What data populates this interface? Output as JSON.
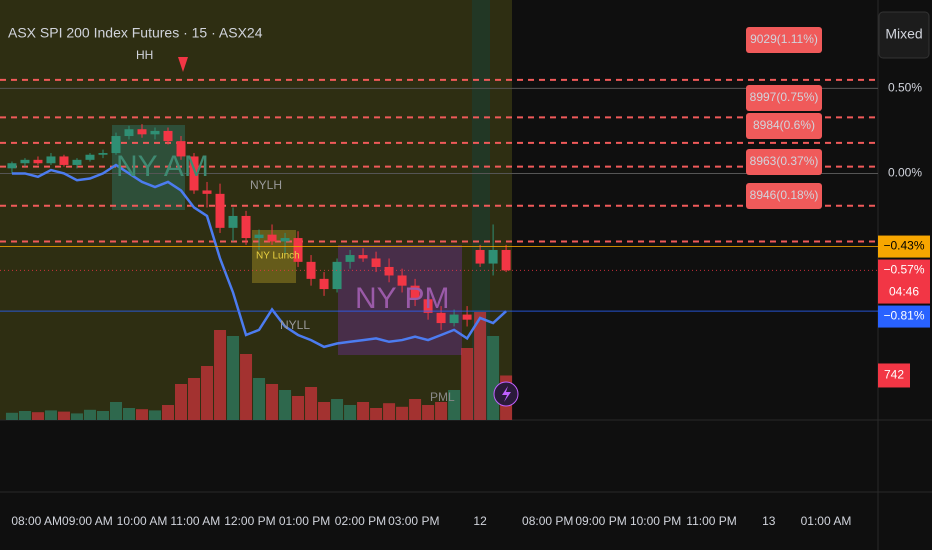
{
  "chart_data": {
    "type": "candlestick",
    "title": "ASX SPI 200 Index Futures · 15 · ASX24",
    "button": "Mixed",
    "ylim": [
      -1.45,
      1.02
    ],
    "xlim": [
      -0.92,
      66.6
    ],
    "yticks": [
      {
        "value": 0.5,
        "label": "0.50%"
      },
      {
        "value": 0,
        "label": "0.00%"
      }
    ],
    "xticks": [
      {
        "value": 1.9,
        "label": "08:00 AM"
      },
      {
        "value": 5.8,
        "label": "09:00 AM"
      },
      {
        "value": 10,
        "label": "10:00 AM"
      },
      {
        "value": 14.1,
        "label": "11:00 AM"
      },
      {
        "value": 18.3,
        "label": "12:00 PM"
      },
      {
        "value": 22.5,
        "label": "01:00 PM"
      },
      {
        "value": 26.8,
        "label": "02:00 PM"
      },
      {
        "value": 30.9,
        "label": "03:00 PM"
      },
      {
        "value": 36,
        "label": "12"
      },
      {
        "value": 41.2,
        "label": "08:00 PM"
      },
      {
        "value": 45.3,
        "label": "09:00 PM"
      },
      {
        "value": 49.5,
        "label": "10:00 PM"
      },
      {
        "value": 53.8,
        "label": "11:00 PM"
      },
      {
        "value": 58.2,
        "label": "13"
      },
      {
        "value": 62.6,
        "label": "01:00 AM"
      }
    ],
    "up_color": "#2f8f74",
    "down_color": "#f23645",
    "open": [
      0.03,
      0.06,
      0.08,
      0.06,
      0.1,
      0.05,
      0.08,
      0.11,
      0.12,
      0.22,
      0.26,
      0.23,
      0.25,
      0.19,
      0.1,
      -0.1,
      -0.12,
      -0.32,
      -0.25,
      -0.38,
      -0.36,
      -0.4,
      -0.38,
      -0.52,
      -0.62,
      -0.68,
      -0.52,
      -0.48,
      -0.5,
      -0.55,
      -0.6,
      -0.66,
      -0.74,
      -0.82,
      -0.88,
      -0.83,
      -0.45,
      -0.53,
      -0.45
    ],
    "high": [
      0.07,
      0.09,
      0.1,
      0.12,
      0.11,
      0.09,
      0.12,
      0.14,
      0.24,
      0.28,
      0.29,
      0.27,
      0.27,
      0.22,
      0.12,
      -0.05,
      -0.06,
      -0.2,
      -0.22,
      -0.33,
      -0.3,
      -0.35,
      -0.34,
      -0.48,
      -0.58,
      -0.5,
      -0.45,
      -0.44,
      -0.46,
      -0.5,
      -0.56,
      -0.62,
      -0.7,
      -0.78,
      -0.8,
      -0.78,
      -0.42,
      -0.3,
      -0.42
    ],
    "low": [
      0.0,
      0.04,
      0.05,
      0.05,
      0.04,
      0.03,
      0.07,
      0.09,
      0.11,
      0.2,
      0.21,
      0.2,
      0.17,
      0.08,
      -0.12,
      -0.2,
      -0.35,
      -0.4,
      -0.42,
      -0.45,
      -0.42,
      -0.48,
      -0.55,
      -0.66,
      -0.72,
      -0.7,
      -0.56,
      -0.52,
      -0.58,
      -0.64,
      -0.7,
      -0.78,
      -0.86,
      -0.92,
      -0.9,
      -0.9,
      -0.55,
      -0.6,
      -0.58
    ],
    "close": [
      0.06,
      0.08,
      0.06,
      0.1,
      0.05,
      0.08,
      0.11,
      0.12,
      0.22,
      0.26,
      0.23,
      0.25,
      0.19,
      0.1,
      -0.1,
      -0.12,
      -0.32,
      -0.25,
      -0.38,
      -0.36,
      -0.4,
      -0.38,
      -0.52,
      -0.62,
      -0.68,
      -0.52,
      -0.48,
      -0.5,
      -0.55,
      -0.6,
      -0.66,
      -0.74,
      -0.82,
      -0.88,
      -0.83,
      -0.86,
      -0.53,
      -0.45,
      -0.57
    ],
    "volume": [
      120,
      150,
      130,
      160,
      140,
      110,
      170,
      150,
      300,
      200,
      180,
      160,
      250,
      600,
      700,
      900,
      1500,
      1400,
      1100,
      700,
      600,
      500,
      400,
      550,
      300,
      350,
      250,
      300,
      200,
      280,
      220,
      350,
      250,
      300,
      500,
      1200,
      1800,
      1400,
      742
    ],
    "volume_ylim": [
      0,
      2000
    ],
    "line_color": "#4c7cf0",
    "line_values": [
      0.0,
      0.0,
      -0.02,
      0.02,
      0.0,
      -0.04,
      -0.03,
      0.0,
      0.05,
      0.0,
      -0.05,
      -0.08,
      -0.05,
      -0.1,
      -0.2,
      -0.25,
      -0.5,
      -0.7,
      -0.95,
      -0.92,
      -0.8,
      -0.9,
      -0.95,
      -0.98,
      -1.02,
      -1.0,
      -0.99,
      -0.98,
      -0.97,
      -0.99,
      -0.98,
      -0.96,
      -0.98,
      -0.95,
      -0.92,
      -0.97,
      -0.85,
      -0.88,
      -0.81
    ],
    "levels": [
      0.55,
      0.33,
      0.18,
      0.04,
      -0.19,
      -0.4
    ],
    "level_color": "#f05a5a",
    "level_labels": [
      "9029(1.11%)",
      "8997(0.75%)",
      "8984(0.6%)",
      "8963(0.37%)",
      "8946(0.18%)"
    ],
    "price_tags": [
      {
        "value": -0.43,
        "label": "−0.43%",
        "color": "#f7a600"
      },
      {
        "value": -0.57,
        "label": "−0.57%",
        "sub": "04:46",
        "color": "#f23645"
      },
      {
        "value": -0.81,
        "label": "−0.81%",
        "color": "#2962ff"
      }
    ],
    "volume_tag": {
      "value": 742,
      "label": "742",
      "color": "#f23645"
    },
    "annotations": [
      "HH",
      "NY AM",
      "NYLH",
      "NY Lunch",
      "NYLL",
      "NY PM",
      "PML"
    ]
  }
}
